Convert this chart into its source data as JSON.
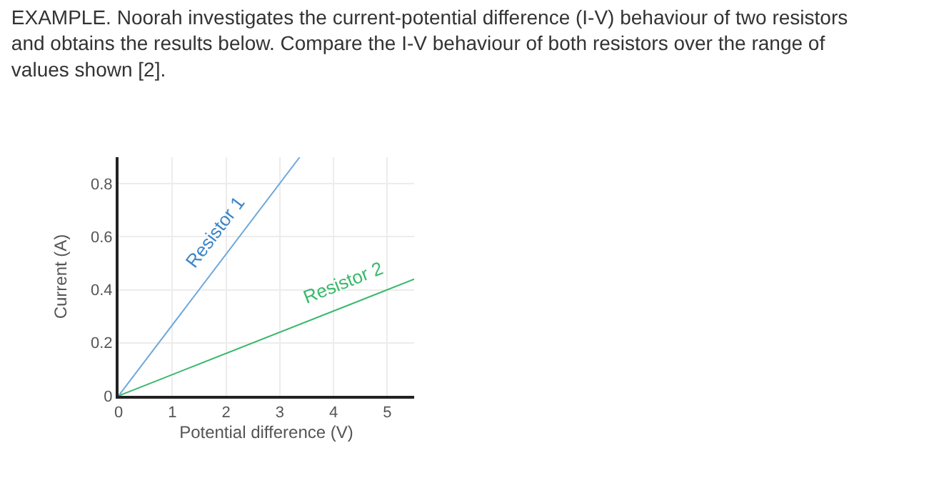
{
  "chart_data": {
    "type": "line",
    "title": "EXAMPLE. Noorah investigates the current-potential difference (I-V) behaviour of two resistors\nand obtains the results below. Compare the I-V behaviour of both resistors over the range of\nvalues shown [2].",
    "xlabel": "Potential difference (V)",
    "ylabel": "Current (A)",
    "xlim": [
      0,
      5.5
    ],
    "xticks": [
      0,
      1,
      2,
      3,
      4,
      5
    ],
    "ylim": [
      0,
      0.9
    ],
    "yticks": [
      0,
      0.2,
      0.4,
      0.6,
      0.8
    ],
    "grid": true,
    "legend": false,
    "marker": "none",
    "line_style": "solid",
    "series": [
      {
        "name": "Resistor 1",
        "color": "#6fa8dc",
        "x": [
          0,
          3.37
        ],
        "values": [
          0,
          0.9
        ]
      },
      {
        "name": "Resistor 2",
        "color": "#38b86b",
        "x": [
          0,
          5.5
        ],
        "values": [
          0,
          0.44
        ]
      }
    ]
  }
}
